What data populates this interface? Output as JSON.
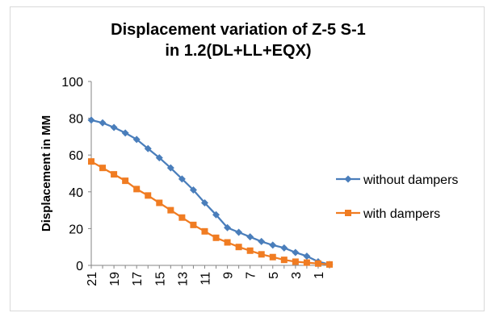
{
  "chart_data": {
    "type": "line",
    "title_line1": "Displacement variation of Z-5 S-1",
    "title_line2": "in 1.2(DL+LL+EQX)",
    "ylabel": "Displacement in MM",
    "xlabel": "",
    "ylim": [
      0,
      100
    ],
    "yticks": [
      "0",
      "20",
      "40",
      "60",
      "80",
      "100"
    ],
    "x": [
      21,
      20,
      19,
      18,
      17,
      16,
      15,
      14,
      13,
      12,
      11,
      10,
      9,
      8,
      7,
      6,
      5,
      4,
      3,
      2,
      1,
      0
    ],
    "xtick_labels": [
      "21",
      "19",
      "17",
      "15",
      "13",
      "11",
      "9",
      "7",
      "5",
      "3",
      "1"
    ],
    "legend_position": "right",
    "series": [
      {
        "name": "without dampers",
        "color": "#4a7ebb",
        "marker": "diamond",
        "values": [
          79,
          77.5,
          75,
          72,
          68.5,
          63.5,
          58.5,
          53,
          47,
          41,
          34,
          27.5,
          20.5,
          18,
          15.5,
          13,
          11,
          9.5,
          7,
          5,
          2,
          0.5
        ]
      },
      {
        "name": "with dampers",
        "color": "#f07c22",
        "marker": "square",
        "values": [
          56.5,
          53,
          49.5,
          46,
          41.5,
          38,
          34,
          30,
          26,
          22,
          18.5,
          15,
          12.5,
          10,
          8,
          6,
          4.5,
          3,
          2,
          1.5,
          1,
          0.5
        ]
      }
    ]
  }
}
